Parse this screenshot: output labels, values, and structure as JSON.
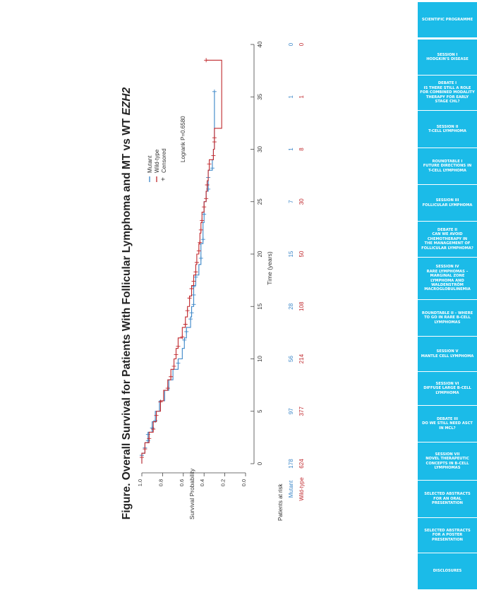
{
  "sidebar": {
    "items": [
      {
        "label": "SCIENTIFIC PROGRAMME"
      },
      {
        "label": "SESSION I\nHODGKIN'S DISEASE"
      },
      {
        "label": "DEBATE I\nIS THERE STILL A ROLE\nFOR COMBINED MODALITY\nTHERAPY FOR EARLY\nSTAGE CHL?"
      },
      {
        "label": "SESSION II\nT-CELL LYMPHOMA"
      },
      {
        "label": "ROUNDTABLE I\nFUTURE DIRECTIONS IN\nT-CELL LYMPHOMA"
      },
      {
        "label": "SESSION III\nFOLLICULAR LYMPHOMA"
      },
      {
        "label": "DEBATE II\nCAN WE AVOID\nCHEMOTHERAPY IN\nTHE MANAGEMENT OF\nFOLLICULAR LYMPHOMA?"
      },
      {
        "label": "SESSION IV\nRARE LYMPHOMAS –\nMARGINAL ZONE\nLYMPHOMA AND\nWALDENSTRÖM\nMACROGLOBULINEMIA"
      },
      {
        "label": "ROUNDTABLE II – WHERE\nTO GO IN RARE B-CELL\nLYMPHOMAS"
      },
      {
        "label": "SESSION V\nMANTLE CELL LYMPHOMA"
      },
      {
        "label": "SESSION VI\nDIFFUSE LARGE B-CELL\nLYMPHOMA"
      },
      {
        "label": "DEBATE III\nDO WE STILL NEED ASCT\nIN MCL?"
      },
      {
        "label": "SESSION VII\nNOVEL THERAPEUTIC\nCONCEPTS IN B-CELL\nLYMPHOMAS"
      },
      {
        "label": "SELECTED ABSTRACTS\nFOR AN ORAL\nPRESENTATION"
      },
      {
        "label": "SELECTED ABSTRACTS\nFOR A POSTER\nPRESENTATION"
      },
      {
        "label": "DISCLOSURES"
      }
    ]
  },
  "colors": {
    "sidebar_bg": "#1bbbe8",
    "mutant": "#3a86c8",
    "wildtype": "#c0282d"
  },
  "chart_data": {
    "type": "line",
    "title": "Figure. Overall Survival for Patients With Follicular Lymphoma and MT vs WT EZH2",
    "title_plain": "Figure. Overall Survival for Patients With Follicular Lymphoma and MT vs WT ",
    "title_italic": "EZH2",
    "xlabel": "Time (years)",
    "ylabel": "Survival Probability",
    "xlim": [
      0,
      40
    ],
    "ylim": [
      0,
      1
    ],
    "xticks": [
      "0",
      "5",
      "10",
      "15",
      "20",
      "25",
      "30",
      "35",
      "40"
    ],
    "yticks": [
      "0.0",
      "0.2",
      "0.4",
      "0.6",
      "0.8",
      "1.0"
    ],
    "orientation": "rotated 90° counter-clockwise",
    "legend": {
      "placement": "top-left",
      "items": [
        "Mutant",
        "Wild-type",
        "Censored"
      ],
      "censored_symbol": "+"
    },
    "annotation": "Logrank P=0.6580",
    "risk_table": {
      "header": "Patients at risk",
      "times": [
        0,
        5,
        10,
        15,
        20,
        25,
        30,
        35,
        40
      ],
      "rows": [
        {
          "name": "Mutant",
          "values": [
            "178",
            "97",
            "56",
            "28",
            "15",
            "7",
            "1",
            "1",
            "0"
          ]
        },
        {
          "name": "Wild-type",
          "values": [
            "624",
            "377",
            "214",
            "108",
            "50",
            "30",
            "8",
            "1",
            "0"
          ]
        }
      ]
    },
    "series": [
      {
        "name": "Mutant",
        "x": [
          0,
          1,
          2,
          3,
          4,
          5,
          6,
          7,
          8,
          9,
          10,
          11,
          12,
          13,
          14,
          15,
          16,
          17,
          18,
          19,
          20,
          21,
          22,
          23,
          24,
          25,
          26,
          27,
          28,
          29,
          30,
          31,
          32,
          33,
          34,
          35.5
        ],
        "y": [
          1.0,
          0.97,
          0.94,
          0.9,
          0.87,
          0.83,
          0.78,
          0.74,
          0.7,
          0.65,
          0.61,
          0.59,
          0.57,
          0.53,
          0.52,
          0.5,
          0.5,
          0.48,
          0.45,
          0.43,
          0.43,
          0.41,
          0.41,
          0.4,
          0.4,
          0.38,
          0.36,
          0.36,
          0.32,
          0.31,
          0.3,
          0.3,
          0.3,
          0.3,
          0.3,
          0.3
        ],
        "censored_x": [
          0.8,
          1.5,
          2.2,
          2.8,
          3.4,
          4.1,
          9.6,
          11.8,
          12.6,
          13.8,
          14.4,
          15.2,
          16.1,
          16.9,
          17.8,
          19.6,
          21.4,
          23.8,
          26.2,
          27.3,
          28.2,
          35.5
        ]
      },
      {
        "name": "Wild-type",
        "x": [
          0,
          1,
          2,
          3,
          4,
          5,
          6,
          7,
          8,
          9,
          10,
          11,
          12,
          13,
          14,
          15,
          16,
          17,
          18,
          19,
          20,
          21,
          22,
          23,
          24,
          25,
          26,
          27,
          28,
          29,
          30,
          31,
          32,
          34,
          38.5
        ],
        "y": [
          1.0,
          0.97,
          0.93,
          0.89,
          0.86,
          0.82,
          0.79,
          0.75,
          0.72,
          0.69,
          0.67,
          0.65,
          0.61,
          0.58,
          0.56,
          0.54,
          0.52,
          0.5,
          0.48,
          0.47,
          0.45,
          0.44,
          0.43,
          0.42,
          0.4,
          0.38,
          0.37,
          0.36,
          0.35,
          0.31,
          0.3,
          0.3,
          0.23,
          0.23,
          0.38
        ],
        "censored_x": [
          0.6,
          1.4,
          2.4,
          3.3,
          4.6,
          5.9,
          7.2,
          8.3,
          9.3,
          10.4,
          11.2,
          12.1,
          13.3,
          14.6,
          15.8,
          16.7,
          17.4,
          18.3,
          19.2,
          20.3,
          21.1,
          22.3,
          23.2,
          24.5,
          25.3,
          26.6,
          28.6,
          29.4,
          30.7,
          31.1,
          38.5
        ]
      }
    ]
  }
}
